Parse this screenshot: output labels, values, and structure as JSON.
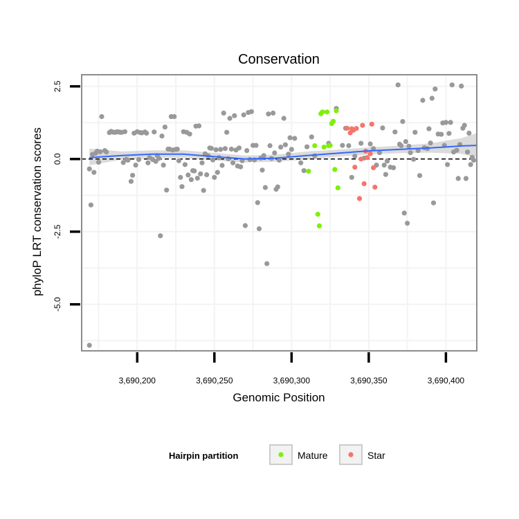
{
  "chart_data": {
    "type": "scatter",
    "title": "Conservation",
    "xlabel": "Genomic Position",
    "ylabel": "phyloP LRT conservation scores",
    "xlim": [
      3690164,
      3690420
    ],
    "ylim": [
      -6.6,
      2.9
    ],
    "x_ticks": [
      3690200,
      3690250,
      3690300,
      3690350,
      3690400
    ],
    "x_tick_labels": [
      "3,690,200",
      "3,690,250",
      "3,690,300",
      "3,690,350",
      "3,690,400"
    ],
    "y_ticks": [
      2.5,
      0.0,
      -2.5,
      -5.0
    ],
    "y_tick_labels": [
      "2.5",
      "0.0",
      "-2.5",
      "-5.0"
    ],
    "reference_line": {
      "y": 0,
      "style": "dashed",
      "color": "#000000"
    },
    "colors": {
      "other": "#999999",
      "Mature": "#7ff00a",
      "Star": "#f5756c",
      "smooth": "#3366ff",
      "band": "#cfcfcf"
    },
    "legend": {
      "title": "Hairpin partition",
      "entries": [
        {
          "label": "Mature",
          "color": "#7ff00a"
        },
        {
          "label": "Star",
          "color": "#f5756c"
        }
      ],
      "placement": "bottom"
    },
    "smooth": {
      "method": "loess",
      "x": [
        3690169,
        3690190,
        3690210,
        3690230,
        3690250,
        3690270,
        3690290,
        3690310,
        3690330,
        3690350,
        3690370,
        3690390,
        3690410,
        3690420
      ],
      "y": [
        0.05,
        0.12,
        0.17,
        0.17,
        0.08,
        0.0,
        0.03,
        0.12,
        0.2,
        0.28,
        0.33,
        0.38,
        0.45,
        0.47
      ],
      "lower": [
        -0.22,
        -0.02,
        0.04,
        0.04,
        -0.05,
        -0.12,
        -0.09,
        -0.02,
        0.08,
        0.16,
        0.2,
        0.22,
        0.18,
        0.05
      ],
      "upper": [
        0.36,
        0.26,
        0.3,
        0.3,
        0.21,
        0.12,
        0.15,
        0.26,
        0.32,
        0.4,
        0.46,
        0.54,
        0.72,
        0.89
      ]
    },
    "series": [
      {
        "name": "Other",
        "points": [
          [
            3690169,
            -6.41
          ],
          [
            3690169,
            -0.34
          ],
          [
            3690170,
            -1.58
          ],
          [
            3690171,
            0.16
          ],
          [
            3690172,
            -0.46
          ],
          [
            3690173,
            0.2
          ],
          [
            3690174,
            0.27
          ],
          [
            3690175,
            -0.11
          ],
          [
            3690176,
            0.25
          ],
          [
            3690177,
            1.46
          ],
          [
            3690179,
            0.29
          ],
          [
            3690180,
            0.24
          ],
          [
            3690182,
            0.91
          ],
          [
            3690183,
            0.95
          ],
          [
            3690184,
            0.93
          ],
          [
            3690185,
            0.92
          ],
          [
            3690186,
            0.92
          ],
          [
            3690187,
            0.94
          ],
          [
            3690188,
            0.93
          ],
          [
            3690189,
            0.92
          ],
          [
            3690190,
            0.92
          ],
          [
            3690191,
            -0.12
          ],
          [
            3690192,
            0.94
          ],
          [
            3690193,
            -0.01
          ],
          [
            3690194,
            -0.04
          ],
          [
            3690196,
            -0.77
          ],
          [
            3690197,
            -0.56
          ],
          [
            3690198,
            0.89
          ],
          [
            3690199,
            -0.21
          ],
          [
            3690200,
            0.94
          ],
          [
            3690201,
            -0.02
          ],
          [
            3690202,
            0.91
          ],
          [
            3690203,
            0.9
          ],
          [
            3690205,
            0.93
          ],
          [
            3690206,
            0.89
          ],
          [
            3690207,
            -0.13
          ],
          [
            3690208,
            0.05
          ],
          [
            3690210,
            -0.02
          ],
          [
            3690211,
            0.93
          ],
          [
            3690212,
            -0.08
          ],
          [
            3690213,
            0.12
          ],
          [
            3690214,
            0.02
          ],
          [
            3690215,
            -2.64
          ],
          [
            3690216,
            0.79
          ],
          [
            3690217,
            -0.21
          ],
          [
            3690218,
            1.1
          ],
          [
            3690219,
            -1.07
          ],
          [
            3690220,
            0.34
          ],
          [
            3690221,
            0.34
          ],
          [
            3690222,
            1.46
          ],
          [
            3690223,
            0.31
          ],
          [
            3690224,
            1.46
          ],
          [
            3690225,
            0.33
          ],
          [
            3690226,
            0.34
          ],
          [
            3690227,
            -0.06
          ],
          [
            3690228,
            -0.63
          ],
          [
            3690229,
            -0.95
          ],
          [
            3690230,
            0.94
          ],
          [
            3690231,
            -0.19
          ],
          [
            3690232,
            0.92
          ],
          [
            3690233,
            -0.55
          ],
          [
            3690234,
            0.86
          ],
          [
            3690235,
            -0.71
          ],
          [
            3690236,
            -0.4
          ],
          [
            3690237,
            -0.41
          ],
          [
            3690238,
            1.13
          ],
          [
            3690239,
            -0.66
          ],
          [
            3690240,
            1.14
          ],
          [
            3690241,
            -0.51
          ],
          [
            3690242,
            -0.13
          ],
          [
            3690243,
            -1.08
          ],
          [
            3690244,
            0.18
          ],
          [
            3690245,
            -0.54
          ],
          [
            3690246,
            0.11
          ],
          [
            3690247,
            0.38
          ],
          [
            3690248,
            0.37
          ],
          [
            3690249,
            -0.03
          ],
          [
            3690250,
            -0.63
          ],
          [
            3690251,
            0.32
          ],
          [
            3690252,
            -0.46
          ],
          [
            3690253,
            0.05
          ],
          [
            3690254,
            0.33
          ],
          [
            3690255,
            -0.22
          ],
          [
            3690256,
            1.58
          ],
          [
            3690257,
            0.36
          ],
          [
            3690258,
            0.92
          ],
          [
            3690259,
            0.01
          ],
          [
            3690260,
            1.4
          ],
          [
            3690261,
            0.34
          ],
          [
            3690262,
            -0.13
          ],
          [
            3690263,
            1.49
          ],
          [
            3690264,
            0.31
          ],
          [
            3690265,
            -0.24
          ],
          [
            3690266,
            0.38
          ],
          [
            3690267,
            -0.27
          ],
          [
            3690268,
            -0.06
          ],
          [
            3690269,
            1.52
          ],
          [
            3690270,
            -2.29
          ],
          [
            3690271,
            0.29
          ],
          [
            3690272,
            1.6
          ],
          [
            3690273,
            -0.02
          ],
          [
            3690274,
            1.63
          ],
          [
            3690275,
            0.47
          ],
          [
            3690276,
            -0.03
          ],
          [
            3690277,
            0.47
          ],
          [
            3690278,
            -1.5
          ],
          [
            3690279,
            -2.4
          ],
          [
            3690280,
            0.03
          ],
          [
            3690281,
            -0.38
          ],
          [
            3690282,
            0.12
          ],
          [
            3690283,
            -0.98
          ],
          [
            3690284,
            -3.6
          ],
          [
            3690285,
            1.55
          ],
          [
            3690286,
            0.46
          ],
          [
            3690287,
            0.02
          ],
          [
            3690288,
            1.58
          ],
          [
            3690289,
            0.21
          ],
          [
            3690290,
            -1.04
          ],
          [
            3690291,
            -0.96
          ],
          [
            3690292,
            -0.04
          ],
          [
            3690293,
            0.41
          ],
          [
            3690295,
            1.4
          ],
          [
            3690296,
            0.49
          ],
          [
            3690298,
            0.17
          ],
          [
            3690299,
            0.73
          ],
          [
            3690300,
            0.33
          ],
          [
            3690302,
            0.71
          ],
          [
            3690306,
            -0.13
          ],
          [
            3690308,
            -0.4
          ],
          [
            3690310,
            0.42
          ],
          [
            3690313,
            0.76
          ],
          [
            3690315,
            0.11
          ],
          [
            3690324,
            0.54
          ],
          [
            3690329,
            1.74
          ],
          [
            3690333,
            0.47
          ],
          [
            3690335,
            1.06
          ],
          [
            3690337,
            0.46
          ],
          [
            3690339,
            -0.63
          ],
          [
            3690341,
            0.1
          ],
          [
            3690345,
            0.54
          ],
          [
            3690347,
            0.03
          ],
          [
            3690351,
            0.52
          ],
          [
            3690353,
            0.36
          ],
          [
            3690355,
            -0.21
          ],
          [
            3690357,
            0.22
          ],
          [
            3690359,
            1.07
          ],
          [
            3690360,
            -0.21
          ],
          [
            3690361,
            -0.53
          ],
          [
            3690362,
            -0.07
          ],
          [
            3690364,
            -0.28
          ],
          [
            3690366,
            -0.3
          ],
          [
            3690367,
            0.93
          ],
          [
            3690369,
            2.55
          ],
          [
            3690370,
            0.51
          ],
          [
            3690371,
            0.46
          ],
          [
            3690372,
            1.29
          ],
          [
            3690373,
            -1.86
          ],
          [
            3690374,
            0.6
          ],
          [
            3690375,
            -2.21
          ],
          [
            3690376,
            0.44
          ],
          [
            3690377,
            0.22
          ],
          [
            3690379,
            -0.01
          ],
          [
            3690380,
            0.92
          ],
          [
            3690382,
            0.29
          ],
          [
            3690383,
            -0.57
          ],
          [
            3690385,
            2.02
          ],
          [
            3690386,
            0.39
          ],
          [
            3690388,
            0.36
          ],
          [
            3690389,
            1.04
          ],
          [
            3690390,
            0.55
          ],
          [
            3690391,
            2.09
          ],
          [
            3690392,
            -1.51
          ],
          [
            3690393,
            2.41
          ],
          [
            3690395,
            0.86
          ],
          [
            3690397,
            0.85
          ],
          [
            3690398,
            1.24
          ],
          [
            3690399,
            0.47
          ],
          [
            3690400,
            1.26
          ],
          [
            3690401,
            -0.19
          ],
          [
            3690402,
            0.88
          ],
          [
            3690403,
            1.26
          ],
          [
            3690404,
            2.55
          ],
          [
            3690405,
            0.24
          ],
          [
            3690407,
            0.3
          ],
          [
            3690408,
            -0.67
          ],
          [
            3690409,
            0.5
          ],
          [
            3690410,
            2.51
          ],
          [
            3690411,
            1.06
          ],
          [
            3690412,
            1.16
          ],
          [
            3690413,
            -0.67
          ],
          [
            3690414,
            0.24
          ],
          [
            3690415,
            0.89
          ],
          [
            3690416,
            -0.19
          ],
          [
            3690417,
            0.06
          ],
          [
            3690418,
            -0.04
          ]
        ]
      },
      {
        "name": "Mature",
        "points": [
          [
            3690311,
            -0.42
          ],
          [
            3690315,
            0.46
          ],
          [
            3690317,
            -1.9
          ],
          [
            3690318,
            -2.3
          ],
          [
            3690319,
            1.56
          ],
          [
            3690320,
            1.62
          ],
          [
            3690321,
            0.41
          ],
          [
            3690323,
            1.62
          ],
          [
            3690324,
            0.46
          ],
          [
            3690325,
            0.47
          ],
          [
            3690326,
            1.22
          ],
          [
            3690327,
            1.3
          ],
          [
            3690328,
            -0.36
          ],
          [
            3690329,
            1.66
          ],
          [
            3690330,
            -0.99
          ]
        ]
      },
      {
        "name": "Star",
        "points": [
          [
            3690336,
            1.06
          ],
          [
            3690338,
            0.9
          ],
          [
            3690339,
            1.04
          ],
          [
            3690340,
            0.99
          ],
          [
            3690341,
            -0.28
          ],
          [
            3690342,
            1.05
          ],
          [
            3690344,
            -1.36
          ],
          [
            3690345,
            0.0
          ],
          [
            3690346,
            1.16
          ],
          [
            3690347,
            -0.85
          ],
          [
            3690348,
            0.27
          ],
          [
            3690349,
            0.05
          ],
          [
            3690351,
            0.18
          ],
          [
            3690352,
            1.2
          ],
          [
            3690353,
            -0.3
          ],
          [
            3690354,
            -0.97
          ]
        ]
      }
    ]
  }
}
